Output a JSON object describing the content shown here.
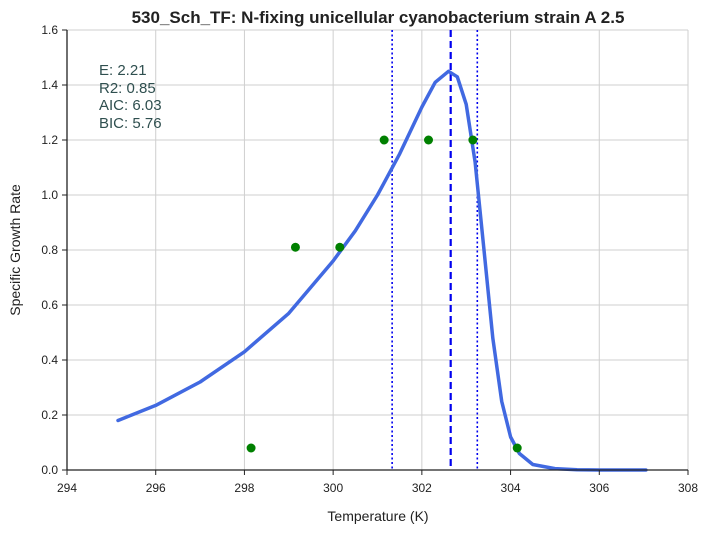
{
  "chart_data": {
    "type": "scatter",
    "title": "530_Sch_TF: N-fixing unicellular cyanobacterium strain A 2.5",
    "xlabel": "Temperature (K)",
    "ylabel": "Specific Growth Rate",
    "xlim": [
      294,
      308
    ],
    "ylim": [
      0,
      1.6
    ],
    "x_ticks": [
      "294",
      "296",
      "298",
      "300",
      "302",
      "304",
      "306",
      "308"
    ],
    "y_ticks": [
      "0.0",
      "0.2",
      "0.4",
      "0.6",
      "0.8",
      "1.0",
      "1.2",
      "1.4",
      "1.6"
    ],
    "grid": true,
    "stats": {
      "e": "E:  2.21",
      "r2": "R2:  0.85",
      "aic": "AIC: 6.03",
      "bic": "BIC: 5.76"
    },
    "points": {
      "color": "#008000",
      "x": [
        298.15,
        299.15,
        300.15,
        301.15,
        302.15,
        303.15,
        304.15
      ],
      "y": [
        0.08,
        0.81,
        0.81,
        1.2,
        1.2,
        1.2,
        0.08
      ]
    },
    "fit_curve": {
      "color": "#4169e1",
      "x": [
        295.15,
        296.0,
        297.0,
        298.0,
        299.0,
        300.0,
        300.5,
        301.0,
        301.5,
        302.0,
        302.3,
        302.6,
        302.8,
        303.0,
        303.2,
        303.4,
        303.6,
        303.8,
        304.0,
        304.2,
        304.5,
        305.0,
        305.5,
        306.0,
        306.5,
        307.05
      ],
      "y": [
        0.18,
        0.235,
        0.32,
        0.43,
        0.57,
        0.76,
        0.87,
        1.0,
        1.15,
        1.32,
        1.41,
        1.45,
        1.43,
        1.33,
        1.12,
        0.8,
        0.48,
        0.25,
        0.12,
        0.06,
        0.02,
        0.005,
        0.001,
        0.0,
        0.0,
        0.0
      ]
    },
    "vlines": [
      {
        "x": 302.65,
        "style": "dashed",
        "color": "#0000ee"
      },
      {
        "x": 301.33,
        "style": "dotted",
        "color": "#0000ee"
      },
      {
        "x": 303.25,
        "style": "dotted",
        "color": "#0000ee"
      }
    ]
  }
}
